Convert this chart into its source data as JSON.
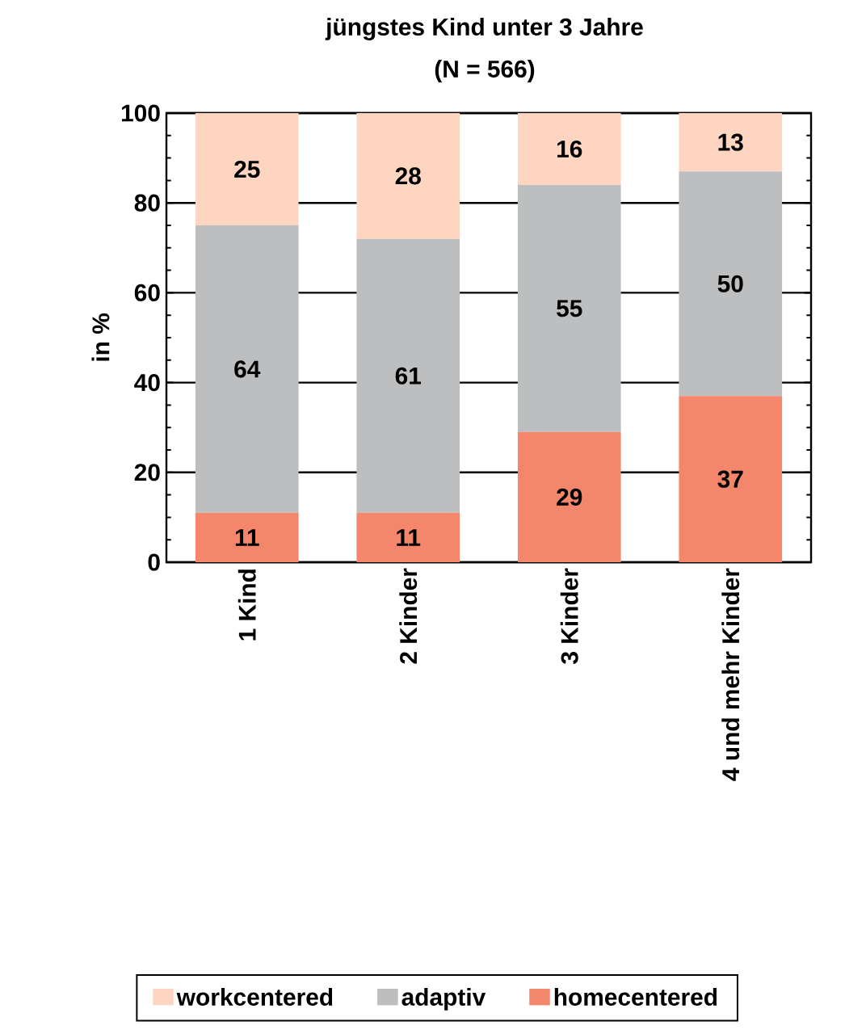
{
  "chart_data": {
    "type": "bar",
    "title": "jüngstes Kind unter 3 Jahre",
    "subtitle": "(N = 566)",
    "ylabel": "in %",
    "categories": [
      "1 Kind",
      "2 Kinder",
      "3 Kinder",
      "4 und mehr Kinder"
    ],
    "stacked": true,
    "series": [
      {
        "name": "homecentered",
        "color": "#f4876b",
        "values": [
          11,
          11,
          29,
          37
        ]
      },
      {
        "name": "adaptiv",
        "color": "#bcbec0",
        "values": [
          64,
          61,
          55,
          50
        ]
      },
      {
        "name": "workcentered",
        "color": "#fdd5c0",
        "values": [
          25,
          28,
          16,
          13
        ]
      }
    ],
    "ylim": [
      0,
      100
    ],
    "yticks": [
      0,
      20,
      40,
      60,
      80,
      100
    ],
    "grid": "y",
    "legend": "bottom",
    "data_labels": true
  }
}
